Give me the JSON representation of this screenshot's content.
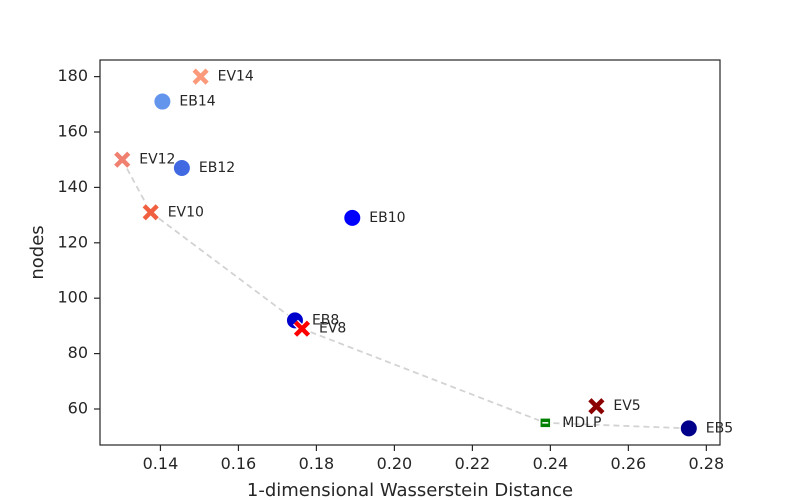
{
  "chart_data": {
    "type": "scatter",
    "xlabel": "1-dimensional Wasserstein Distance",
    "ylabel": "nodes",
    "xlim": [
      0.1245,
      0.2835
    ],
    "ylim": [
      47,
      186
    ],
    "xticks": [
      0.14,
      0.16,
      0.18,
      0.2,
      0.22,
      0.24,
      0.26,
      0.28
    ],
    "xtick_labels": [
      "0.14",
      "0.16",
      "0.18",
      "0.20",
      "0.22",
      "0.24",
      "0.26",
      "0.28"
    ],
    "yticks": [
      60,
      80,
      100,
      120,
      140,
      160,
      180
    ],
    "ytick_labels": [
      "60",
      "80",
      "100",
      "120",
      "140",
      "160",
      "180"
    ],
    "grid": false,
    "points": [
      {
        "label": "EV14",
        "x": 0.1503,
        "y": 180,
        "marker": "x",
        "color": "#fa9a7a"
      },
      {
        "label": "EB14",
        "x": 0.1405,
        "y": 171,
        "marker": "circle",
        "color": "#6495ed"
      },
      {
        "label": "EV12",
        "x": 0.1302,
        "y": 150,
        "marker": "x",
        "color": "#f08070"
      },
      {
        "label": "EB12",
        "x": 0.1455,
        "y": 147,
        "marker": "circle",
        "color": "#4169e1"
      },
      {
        "label": "EV10",
        "x": 0.1375,
        "y": 131,
        "marker": "x",
        "color": "#f06040"
      },
      {
        "label": "EB10",
        "x": 0.1892,
        "y": 129,
        "marker": "circle",
        "color": "#0000ff"
      },
      {
        "label": "EB8",
        "x": 0.1745,
        "y": 92,
        "marker": "circle",
        "color": "#0000cd"
      },
      {
        "label": "EV8",
        "x": 0.1763,
        "y": 89,
        "marker": "x",
        "color": "#ff0000"
      },
      {
        "label": "EV5",
        "x": 0.2518,
        "y": 61,
        "marker": "x",
        "color": "#8b0000"
      },
      {
        "label": "MDLP",
        "x": 0.2387,
        "y": 55,
        "marker": "square",
        "color": "#008000"
      },
      {
        "label": "EB5",
        "x": 0.2755,
        "y": 53,
        "marker": "circle",
        "color": "#00008b"
      }
    ],
    "frontier": {
      "color": "#d3d3d3",
      "points": [
        {
          "x": 0.1302,
          "y": 150
        },
        {
          "x": 0.1375,
          "y": 131
        },
        {
          "x": 0.1745,
          "y": 92
        },
        {
          "x": 0.1763,
          "y": 89
        },
        {
          "x": 0.2387,
          "y": 55
        },
        {
          "x": 0.2755,
          "y": 53
        }
      ]
    }
  }
}
